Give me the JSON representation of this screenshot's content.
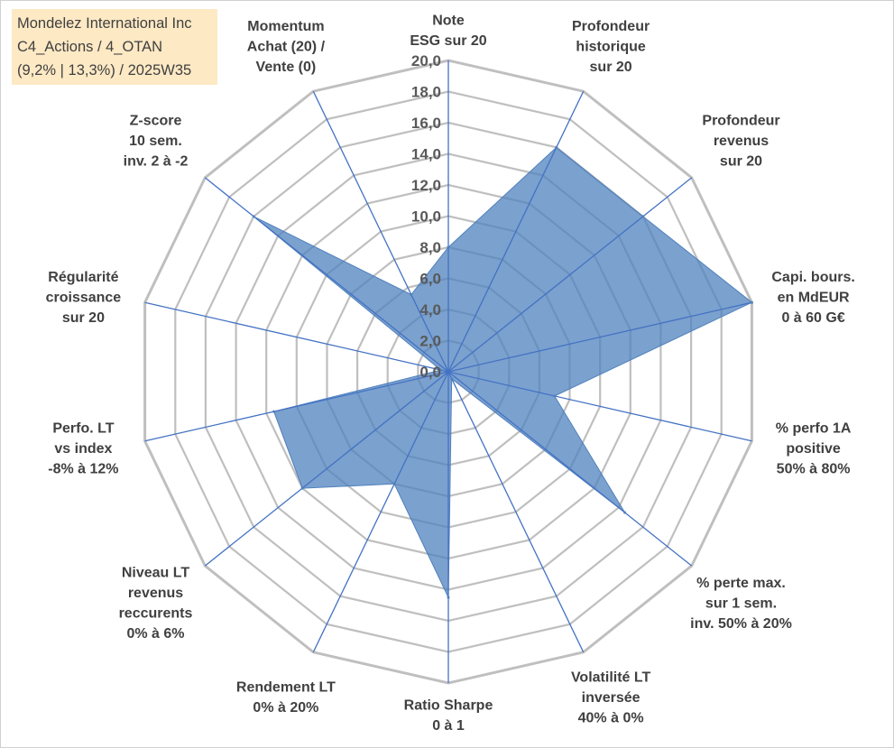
{
  "header": {
    "line1": "Mondelez International Inc",
    "line2": "C4_Actions / 4_OTAN",
    "line3": "(9,2% | 13,3%) / 2025W35"
  },
  "chart_data": {
    "type": "radar",
    "title": "",
    "rlim": [
      0,
      20
    ],
    "tick_step": 2,
    "tick_labels": [
      "0,0",
      "2,0",
      "4,0",
      "6,0",
      "8,0",
      "10,0",
      "12,0",
      "14,0",
      "16,0",
      "18,0",
      "20,0"
    ],
    "grid": true,
    "legend": "none",
    "fill_color": "#4f81bd",
    "line_color": "#4472c4",
    "grid_color": "#bfbfbf",
    "axes": [
      {
        "label": [
          "Note",
          "ESG sur 20"
        ],
        "value": 8.0
      },
      {
        "label": [
          "Profondeur",
          "historique",
          "sur 20"
        ],
        "value": 16.0
      },
      {
        "label": [
          "Profondeur",
          "revenus",
          "sur 20"
        ],
        "value": 16.0
      },
      {
        "label": [
          "Capi. bours.",
          "en MdEUR",
          "0 à 60 G€"
        ],
        "value": 20.0
      },
      {
        "label": [
          "% perfo 1A",
          "positive",
          "50% à 80%"
        ],
        "value": 7.0
      },
      {
        "label": [
          "% perte max.",
          "sur 1 sem.",
          "inv. 50% à 20%"
        ],
        "value": 14.5
      },
      {
        "label": [
          "Volatilité LT",
          "inversée",
          "40% à 0%"
        ],
        "value": 0.5
      },
      {
        "label": [
          "Ratio Sharpe",
          "0 à 1"
        ],
        "value": 14.5
      },
      {
        "label": [
          "Rendement LT",
          "0% à 20%"
        ],
        "value": 8.0
      },
      {
        "label": [
          "Niveau LT",
          "revenus",
          "reccurents",
          "0% à 6%"
        ],
        "value": 12.0
      },
      {
        "label": [
          "Perfo. LT",
          "vs index",
          "-8% à 12%"
        ],
        "value": 11.5
      },
      {
        "label": [
          "Régularité",
          "croissance",
          "sur 20"
        ],
        "value": 0.5
      },
      {
        "label": [
          "Z-score",
          "10 sem.",
          "inv. 2 à -2"
        ],
        "value": 16.0
      },
      {
        "label": [
          "Momentum",
          "Achat (20) /",
          "Vente (0)"
        ],
        "value": 5.5
      }
    ]
  }
}
